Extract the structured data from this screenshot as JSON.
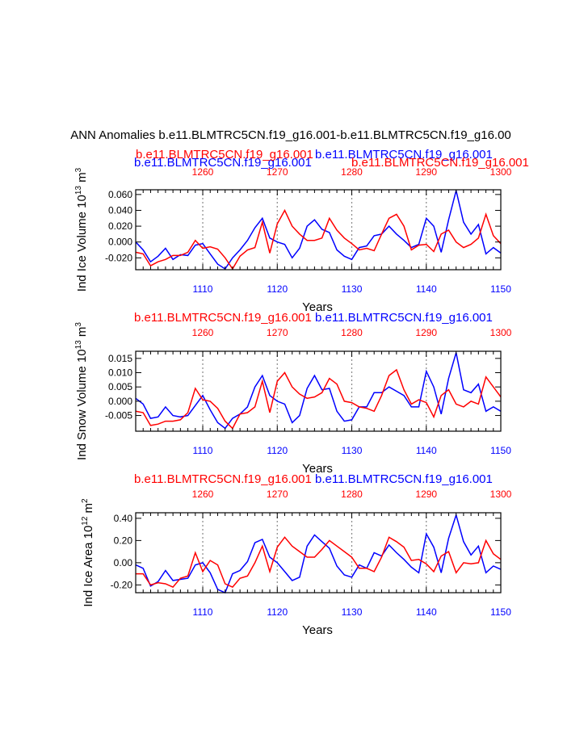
{
  "title": "ANN Anomalies b.e11.BLMTRC5CN.f19_g16.001-b.e11.BLMTRC5CN.f19_g16.00",
  "colors": {
    "blue": "#0000ff",
    "red": "#ff0000",
    "grid": "#888888",
    "axis": "#000000"
  },
  "chart_data": [
    {
      "type": "line",
      "ylabel": "Ind Ice Volume 10",
      "ylabel_exp": "13",
      "ylabel_unit": "m",
      "ylabel_unit_exp": "3",
      "xlabel": "Years",
      "top_left_label": "b.e11.BLMTRC5CN.f19_g16.001",
      "top_left_label_red": "b.e11.BLMTRC5CN.f19_g16.001",
      "top_right_label": "b.e11.BLMTRC5CN.f19_g16.001",
      "top_right_label_red": "b.e11.BLMTRC5CN.f19_g16.001",
      "xlim_bottom": [
        1101,
        1150
      ],
      "xlim_top": [
        1251,
        1300
      ],
      "xticks_bottom": [
        1110,
        1120,
        1130,
        1140,
        1150
      ],
      "xticks_top": [
        1260,
        1270,
        1280,
        1290,
        1300
      ],
      "ylim": [
        -0.035,
        0.066
      ],
      "yticks": [
        -0.02,
        0.0,
        0.02,
        0.04,
        0.06
      ],
      "ytick_labels": [
        "-0.020",
        "0.000",
        "0.020",
        "0.040",
        "0.060"
      ],
      "series": [
        {
          "name": "b.e11.BLMTRC5CN.f19_g16.001",
          "color": "blue",
          "x_start": 1101,
          "values": [
            0.0,
            -0.01,
            -0.025,
            -0.018,
            -0.008,
            -0.022,
            -0.016,
            -0.017,
            -0.004,
            -0.002,
            -0.015,
            -0.028,
            -0.034,
            -0.02,
            -0.01,
            0.002,
            0.018,
            0.03,
            0.005,
            0.0,
            -0.003,
            -0.02,
            -0.008,
            0.02,
            0.028,
            0.016,
            0.012,
            -0.01,
            -0.018,
            -0.022,
            -0.007,
            -0.005,
            0.008,
            0.01,
            0.02,
            0.01,
            0.002,
            -0.007,
            -0.003,
            0.03,
            0.02,
            -0.013,
            0.028,
            0.065,
            0.025,
            0.01,
            0.022,
            -0.015,
            -0.007,
            -0.014
          ]
        },
        {
          "name": "b.e11.BLMTRC5CN.f19_g16.001",
          "color": "red",
          "x_start": 1101,
          "values": [
            -0.013,
            -0.015,
            -0.03,
            -0.025,
            -0.022,
            -0.017,
            -0.017,
            -0.013,
            0.002,
            -0.008,
            -0.006,
            -0.009,
            -0.02,
            -0.034,
            -0.018,
            -0.01,
            -0.007,
            0.025,
            -0.014,
            0.023,
            0.04,
            0.02,
            0.01,
            0.002,
            0.002,
            0.005,
            0.03,
            0.015,
            0.005,
            -0.002,
            -0.01,
            -0.008,
            -0.011,
            0.01,
            0.03,
            0.035,
            0.02,
            -0.01,
            -0.004,
            -0.003,
            -0.012,
            0.01,
            0.015,
            0.0,
            -0.007,
            -0.003,
            0.005,
            0.035,
            0.008,
            -0.002
          ]
        }
      ]
    },
    {
      "type": "line",
      "ylabel": "Ind Snow Volume 10",
      "ylabel_exp": "13",
      "ylabel_unit": "m",
      "ylabel_unit_exp": "3",
      "xlabel": "Years",
      "top_left_label": "b.e11.BLMTRC5CN.f19_g16.001",
      "top_right_label": "b.e11.BLMTRC5CN.f19_g16.001",
      "xlim_bottom": [
        1101,
        1150
      ],
      "xlim_top": [
        1251,
        1300
      ],
      "xticks_bottom": [
        1110,
        1120,
        1130,
        1140,
        1150
      ],
      "xticks_top": [
        1260,
        1270,
        1280,
        1290,
        1300
      ],
      "ylim": [
        -0.0105,
        0.0175
      ],
      "yticks": [
        -0.005,
        0.0,
        0.005,
        0.01,
        0.015
      ],
      "ytick_labels": [
        "-0.005",
        "0.000",
        "0.005",
        "0.010",
        "0.015"
      ],
      "series": [
        {
          "name": "b.e11.BLMTRC5CN.f19_g16.001",
          "color": "blue",
          "x_start": 1101,
          "values": [
            0.001,
            -0.001,
            -0.006,
            -0.0055,
            -0.002,
            -0.005,
            -0.0055,
            -0.005,
            -0.0015,
            0.002,
            -0.003,
            -0.0075,
            -0.0095,
            -0.006,
            -0.0045,
            -0.002,
            0.005,
            0.009,
            0.002,
            0.0,
            -0.001,
            -0.0075,
            -0.005,
            0.0045,
            0.009,
            0.004,
            0.0045,
            -0.0035,
            -0.007,
            -0.0065,
            -0.002,
            -0.002,
            0.003,
            0.003,
            0.005,
            0.0035,
            0.002,
            -0.002,
            -0.002,
            0.0105,
            0.005,
            -0.0045,
            0.008,
            0.017,
            0.004,
            0.003,
            0.006,
            -0.0035,
            -0.002,
            -0.0035
          ]
        },
        {
          "name": "b.e11.BLMTRC5CN.f19_g16.001",
          "color": "red",
          "x_start": 1101,
          "values": [
            -0.0035,
            -0.004,
            -0.0085,
            -0.008,
            -0.007,
            -0.007,
            -0.0065,
            -0.004,
            0.0045,
            0.0005,
            0.0,
            -0.0025,
            -0.007,
            -0.0095,
            -0.0045,
            -0.004,
            -0.002,
            0.007,
            -0.004,
            0.007,
            0.01,
            0.005,
            0.0025,
            0.001,
            0.0015,
            0.003,
            0.008,
            0.006,
            0.0,
            -0.0005,
            -0.002,
            -0.0025,
            -0.0035,
            0.002,
            0.009,
            0.011,
            0.004,
            -0.001,
            0.0005,
            -0.0005,
            -0.0055,
            0.002,
            0.004,
            -0.001,
            -0.002,
            0.0,
            -0.001,
            0.0085,
            0.005,
            0.0015
          ]
        }
      ]
    },
    {
      "type": "line",
      "ylabel": "Ind Ice Area 10",
      "ylabel_exp": "12",
      "ylabel_unit": "m",
      "ylabel_unit_exp": "2",
      "xlabel": "Years",
      "top_left_label": "b.e11.BLMTRC5CN.f19_g16.001",
      "top_right_label": "b.e11.BLMTRC5CN.f19_g16.001",
      "xlim_bottom": [
        1101,
        1150
      ],
      "xlim_top": [
        1251,
        1300
      ],
      "xticks_bottom": [
        1110,
        1120,
        1130,
        1140,
        1150
      ],
      "xticks_top": [
        1260,
        1270,
        1280,
        1290,
        1300
      ],
      "ylim": [
        -0.27,
        0.45
      ],
      "yticks": [
        -0.2,
        0.0,
        0.2,
        0.4
      ],
      "ytick_labels": [
        "-0.20",
        "0.00",
        "0.20",
        "0.40"
      ],
      "series": [
        {
          "name": "b.e11.BLMTRC5CN.f19_g16.001",
          "color": "blue",
          "x_start": 1101,
          "values": [
            -0.02,
            -0.05,
            -0.21,
            -0.17,
            -0.07,
            -0.16,
            -0.15,
            -0.14,
            -0.02,
            0.0,
            -0.09,
            -0.24,
            -0.27,
            -0.1,
            -0.07,
            0.01,
            0.18,
            0.21,
            0.05,
            0.0,
            -0.08,
            -0.16,
            -0.13,
            0.15,
            0.25,
            0.19,
            0.13,
            -0.03,
            -0.11,
            -0.13,
            -0.02,
            -0.05,
            0.09,
            0.06,
            0.16,
            0.09,
            0.03,
            -0.04,
            -0.09,
            0.26,
            0.14,
            -0.09,
            0.22,
            0.43,
            0.19,
            0.07,
            0.15,
            -0.09,
            -0.03,
            -0.06
          ]
        },
        {
          "name": "b.e11.BLMTRC5CN.f19_g16.001",
          "color": "red",
          "x_start": 1101,
          "values": [
            -0.1,
            -0.1,
            -0.2,
            -0.18,
            -0.19,
            -0.22,
            -0.14,
            -0.12,
            0.09,
            -0.08,
            0.02,
            -0.02,
            -0.19,
            -0.22,
            -0.14,
            -0.12,
            0.0,
            0.15,
            -0.08,
            0.14,
            0.23,
            0.15,
            0.1,
            0.05,
            0.05,
            0.12,
            0.2,
            0.15,
            0.1,
            0.05,
            -0.05,
            -0.05,
            -0.08,
            0.05,
            0.23,
            0.19,
            0.14,
            0.02,
            0.03,
            -0.01,
            -0.08,
            0.06,
            0.1,
            -0.09,
            0.0,
            -0.01,
            0.0,
            0.2,
            0.08,
            0.03
          ]
        }
      ]
    }
  ]
}
